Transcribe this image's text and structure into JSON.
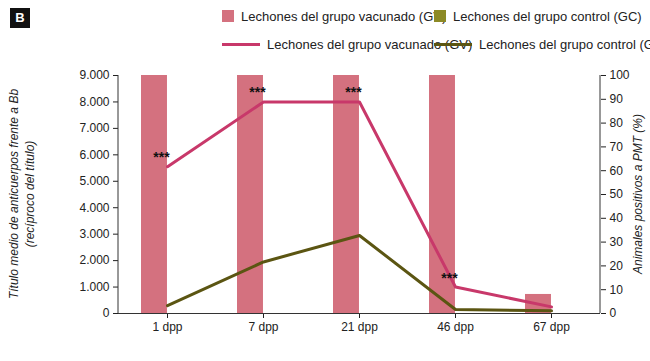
{
  "chart_data": {
    "type": "bar",
    "panel_label": "B",
    "categories": [
      "1 dpp",
      "7 dpp",
      "21 dpp",
      "46 dpp",
      "67 dpp"
    ],
    "ylabel": "Título medio de anticuerpos frente a Bb\n(recíproco del título)",
    "y2label": "Animales positivos a PMT (%)",
    "ylim": [
      0,
      9000
    ],
    "yticks": [
      0,
      {
        "value": 1000,
        "label": "1.000"
      },
      {
        "value": 2000,
        "label": "2.000"
      },
      {
        "value": 3000,
        "label": "3.000"
      },
      {
        "value": 4000,
        "label": "4.000"
      },
      {
        "value": 5000,
        "label": "5.000"
      },
      {
        "value": 6000,
        "label": "6.000"
      },
      {
        "value": 7000,
        "label": "7.000"
      },
      {
        "value": 8000,
        "label": "8.000"
      },
      {
        "value": 9000,
        "label": "9.000"
      }
    ],
    "y2lim": [
      0,
      100
    ],
    "y2ticks": [
      0,
      10,
      20,
      30,
      40,
      50,
      60,
      70,
      80,
      90,
      100
    ],
    "legend": "top",
    "series": [
      {
        "name": "Lechones del grupo vacunado (GV)",
        "type": "bar",
        "axis": "y2",
        "color": "#d4717f",
        "values": [
          100,
          100,
          100,
          100,
          8
        ]
      },
      {
        "name": "Lechones del grupo control (GC)",
        "type": "bar",
        "axis": "y2",
        "color": "#8c8a26",
        "values": [
          0,
          0,
          0,
          0,
          0
        ]
      },
      {
        "name": "Lechones del grupo vacunado (GV)",
        "type": "line",
        "color": "#c8386a",
        "values": [
          5550,
          8000,
          8000,
          1000,
          250
        ],
        "annotations": [
          "***",
          "***",
          "***",
          "***",
          null
        ]
      },
      {
        "name": "Lechones del grupo control (GC)",
        "type": "line",
        "color": "#5b5512",
        "values": [
          300,
          1950,
          2950,
          150,
          100
        ]
      }
    ]
  }
}
